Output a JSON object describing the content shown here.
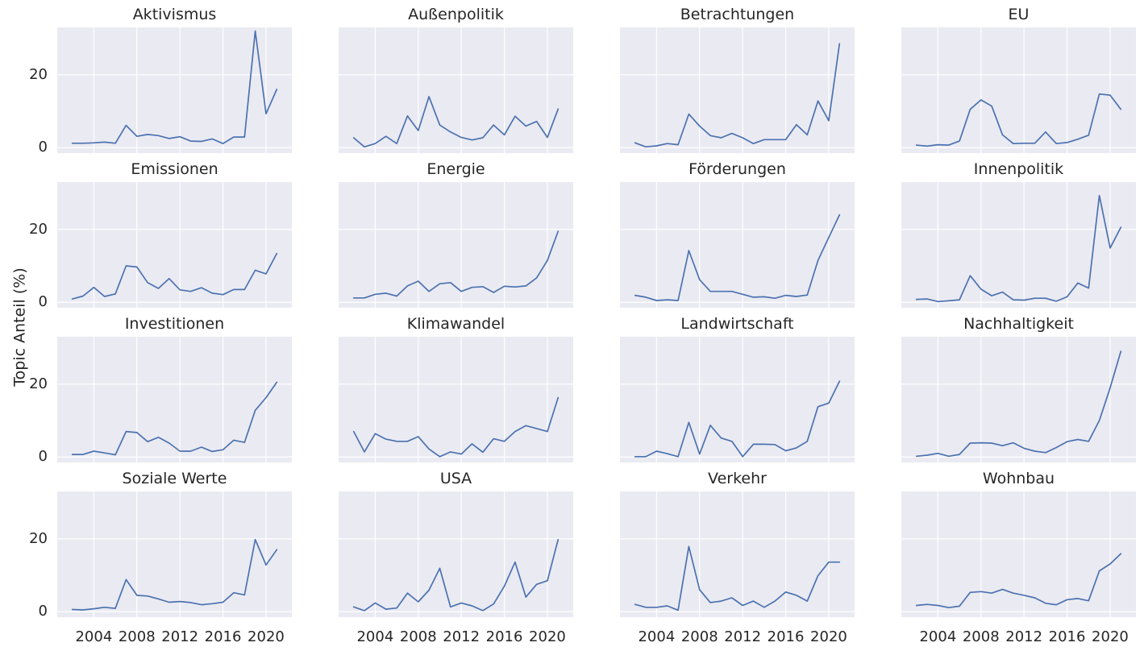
{
  "chart_data": {
    "type": "line",
    "layout": "4x4 small multiples, shared y axis",
    "ylabel": "Topic Anteil (%)",
    "ylim": [
      -1.5,
      33
    ],
    "xlim": [
      2000.6,
      2022.4
    ],
    "yticks": [
      0,
      20
    ],
    "xticks": [
      2004,
      2008,
      2012,
      2016,
      2020
    ],
    "grid": true,
    "x": [
      2002,
      2003,
      2004,
      2005,
      2006,
      2007,
      2008,
      2009,
      2010,
      2011,
      2012,
      2013,
      2014,
      2015,
      2016,
      2017,
      2018,
      2019,
      2020,
      2021
    ],
    "series_color": "#4c72b0",
    "panels": [
      {
        "title": "Aktivismus",
        "values": [
          1.2,
          1.2,
          1.3,
          1.5,
          1.2,
          6.1,
          3.1,
          3.6,
          3.3,
          2.5,
          3.0,
          1.8,
          1.7,
          2.4,
          1.1,
          2.9,
          2.9,
          32.0,
          9.3,
          16.0
        ]
      },
      {
        "title": "Außenpolitik",
        "values": [
          2.7,
          0.2,
          1.1,
          3.1,
          1.1,
          8.7,
          4.7,
          14.0,
          6.2,
          4.3,
          2.8,
          2.1,
          2.7,
          6.2,
          3.5,
          8.6,
          5.9,
          7.2,
          2.8,
          10.6
        ]
      },
      {
        "title": "Betrachtungen",
        "values": [
          1.3,
          0.2,
          0.5,
          1.1,
          0.8,
          9.2,
          5.9,
          3.3,
          2.7,
          3.9,
          2.7,
          1.1,
          2.2,
          2.2,
          2.2,
          6.3,
          3.5,
          12.8,
          7.4,
          28.5
        ]
      },
      {
        "title": "EU",
        "values": [
          0.7,
          0.4,
          0.8,
          0.7,
          1.8,
          10.5,
          13.1,
          11.4,
          3.5,
          1.1,
          1.2,
          1.2,
          4.3,
          1.1,
          1.4,
          2.3,
          3.4,
          14.7,
          14.4,
          10.5
        ]
      },
      {
        "title": "Emissionen",
        "values": [
          0.9,
          1.7,
          4.1,
          1.6,
          2.3,
          10.0,
          9.7,
          5.4,
          3.8,
          6.5,
          3.4,
          3.0,
          4.0,
          2.5,
          2.1,
          3.5,
          3.5,
          8.8,
          7.8,
          13.4
        ]
      },
      {
        "title": "Energie",
        "values": [
          1.2,
          1.2,
          2.2,
          2.5,
          1.7,
          4.5,
          5.8,
          3.0,
          5.1,
          5.4,
          3.0,
          4.1,
          4.3,
          2.7,
          4.4,
          4.2,
          4.5,
          6.7,
          11.5,
          19.5
        ]
      },
      {
        "title": "Förderungen",
        "values": [
          1.9,
          1.4,
          0.5,
          0.7,
          0.5,
          14.2,
          6.2,
          3.0,
          3.0,
          3.0,
          2.2,
          1.4,
          1.5,
          1.1,
          1.9,
          1.6,
          2.0,
          11.5,
          17.8,
          24.0
        ]
      },
      {
        "title": "Innenpolitik",
        "values": [
          0.8,
          0.9,
          0.2,
          0.4,
          0.7,
          7.3,
          3.6,
          1.8,
          2.8,
          0.7,
          0.6,
          1.1,
          1.1,
          0.3,
          1.5,
          5.3,
          3.9,
          29.3,
          14.9,
          20.6
        ]
      },
      {
        "title": "Investitionen",
        "values": [
          0.7,
          0.7,
          1.6,
          1.1,
          0.6,
          7.0,
          6.7,
          4.2,
          5.4,
          3.8,
          1.6,
          1.6,
          2.7,
          1.5,
          2.0,
          4.6,
          4.0,
          12.8,
          16.3,
          20.5
        ]
      },
      {
        "title": "Klimawandel",
        "values": [
          7.0,
          1.4,
          6.4,
          4.9,
          4.3,
          4.3,
          5.6,
          2.2,
          0.1,
          1.4,
          0.8,
          3.6,
          1.3,
          5.0,
          4.3,
          7.0,
          8.6,
          7.8,
          7.0,
          16.3
        ]
      },
      {
        "title": "Landwirtschaft",
        "values": [
          0.1,
          0.1,
          1.6,
          0.9,
          0.1,
          9.5,
          0.8,
          8.7,
          5.2,
          4.3,
          0.1,
          3.5,
          3.5,
          3.4,
          1.7,
          2.5,
          4.3,
          13.8,
          14.8,
          20.8
        ]
      },
      {
        "title": "Nachhaltigkeit",
        "values": [
          0.2,
          0.5,
          1.0,
          0.2,
          0.7,
          3.8,
          3.9,
          3.8,
          3.1,
          3.9,
          2.4,
          1.6,
          1.2,
          2.6,
          4.2,
          4.8,
          4.3,
          10.0,
          19.0,
          29.0
        ]
      },
      {
        "title": "Soziale Werte",
        "values": [
          0.6,
          0.5,
          0.8,
          1.2,
          0.9,
          8.8,
          4.5,
          4.3,
          3.5,
          2.6,
          2.8,
          2.5,
          1.9,
          2.2,
          2.6,
          5.2,
          4.6,
          19.8,
          12.8,
          17.0
        ]
      },
      {
        "title": "USA",
        "values": [
          1.3,
          0.3,
          2.4,
          0.7,
          1.0,
          5.1,
          2.7,
          5.9,
          11.9,
          1.3,
          2.4,
          1.6,
          0.3,
          2.1,
          7.0,
          13.6,
          4.0,
          7.5,
          8.5,
          19.8
        ]
      },
      {
        "title": "Verkehr",
        "values": [
          2.0,
          1.2,
          1.2,
          1.6,
          0.4,
          17.9,
          6.0,
          2.5,
          2.9,
          3.8,
          1.7,
          2.9,
          1.2,
          2.9,
          5.4,
          4.5,
          2.9,
          9.9,
          13.6,
          13.6
        ]
      },
      {
        "title": "Wohnbau",
        "values": [
          1.7,
          2.0,
          1.7,
          1.1,
          1.5,
          5.3,
          5.5,
          5.1,
          6.1,
          5.1,
          4.5,
          3.8,
          2.3,
          1.9,
          3.3,
          3.6,
          3.0,
          11.2,
          13.1,
          15.9
        ]
      }
    ]
  }
}
